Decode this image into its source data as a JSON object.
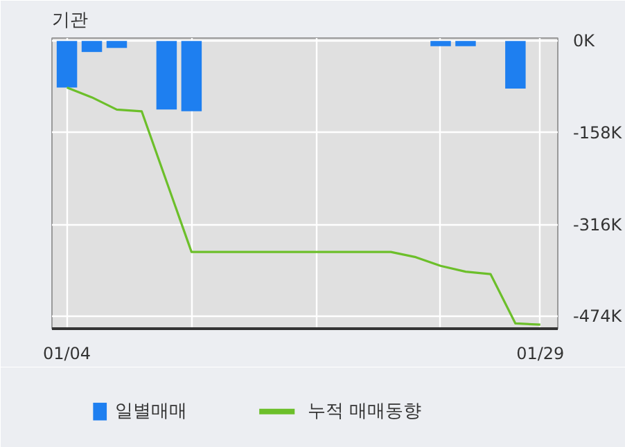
{
  "chart_data": {
    "type": "bar",
    "title": "기관",
    "categories": [
      "01/04",
      null,
      null,
      null,
      null,
      null,
      null,
      null,
      null,
      null,
      null,
      null,
      null,
      null,
      null,
      null,
      null,
      null,
      null,
      "01/29"
    ],
    "series": [
      {
        "name": "일별매매",
        "color": "#1e7ff0",
        "values": [
          -80,
          -19,
          -12,
          0,
          -118,
          -121,
          0,
          0,
          0,
          0,
          0,
          0,
          0,
          0,
          0,
          -9,
          -9,
          0,
          -82,
          0
        ]
      },
      {
        "name": "누적 매매동향",
        "type": "line",
        "color": "#6cbf2a",
        "values": [
          -80,
          -97,
          -118,
          -121,
          -242,
          -363,
          -363,
          -363,
          -363,
          -363,
          -363,
          -363,
          -363,
          -363,
          -372,
          -387,
          -397,
          -401,
          -486,
          -488
        ]
      }
    ],
    "ylim": [
      -495,
      5
    ],
    "yticks": [
      {
        "value": 0,
        "label": "0K"
      },
      {
        "value": -158,
        "label": "-158K"
      },
      {
        "value": -316,
        "label": "-316K"
      },
      {
        "value": -474,
        "label": "-474K"
      }
    ],
    "grid": true,
    "legend": "bottom"
  }
}
